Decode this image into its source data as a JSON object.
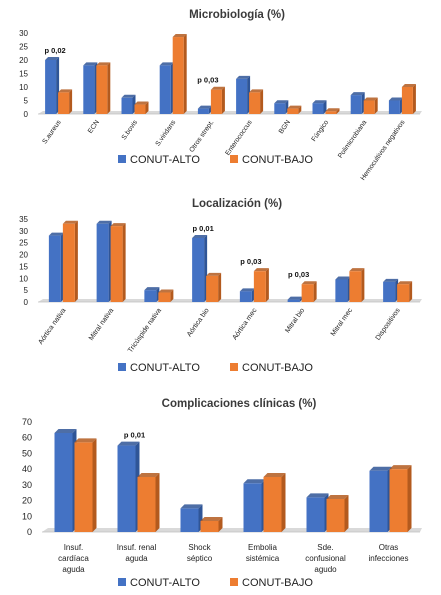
{
  "colors": {
    "alto": "#4472C4",
    "alto_side": "#2F5597",
    "bajo": "#ED7D31",
    "bajo_side": "#B35A1E",
    "floor": "#d9d9d9"
  },
  "chart_data": [
    {
      "type": "bar",
      "title": "Microbiología (%)",
      "ylim": [
        0,
        30
      ],
      "yticks": [
        0,
        5,
        10,
        15,
        20,
        25,
        30
      ],
      "categories": [
        "S.aureus",
        "ECN",
        "S.bovis",
        "S.viridans",
        "Otros strept.",
        "Enterococcus",
        "BGN",
        "Fúngico",
        "Polimicrobiana",
        "Hemocultivos negativos"
      ],
      "series": [
        {
          "name": "CONUT-ALTO",
          "values": [
            20,
            18,
            6,
            18,
            2,
            13,
            4,
            4,
            7,
            5
          ]
        },
        {
          "name": "CONUT-BAJO",
          "values": [
            8,
            18,
            3.5,
            28.5,
            9,
            8,
            2,
            1,
            5,
            10
          ]
        }
      ],
      "annotations": [
        {
          "category": "S.aureus",
          "text": "p 0,02"
        },
        {
          "category": "Otros strept.",
          "text": "p 0,03"
        }
      ],
      "legend": "bottom"
    },
    {
      "type": "bar",
      "title": "Localización (%)",
      "ylim": [
        0,
        35
      ],
      "yticks": [
        0,
        5,
        10,
        15,
        20,
        25,
        30,
        35
      ],
      "categories": [
        "Aórtica nativa",
        "Mitral nativa",
        "Tricúspide nativa",
        "Aórtica bio",
        "Aórtica mec",
        "Mitral bio",
        "Mitral mec",
        "Dispositivos"
      ],
      "series": [
        {
          "name": "CONUT-ALTO",
          "values": [
            28,
            33,
            5,
            27,
            4.5,
            1,
            9.5,
            8.5
          ]
        },
        {
          "name": "CONUT-BAJO",
          "values": [
            33,
            32,
            4,
            11,
            13,
            7.5,
            13,
            7.5
          ]
        }
      ],
      "annotations": [
        {
          "category": "Aórtica bio",
          "text": "p 0,01"
        },
        {
          "category": "Aórtica mec",
          "text": "p 0,03"
        },
        {
          "category": "Mitral bio",
          "text": "p 0,03"
        }
      ],
      "legend": "bottom"
    },
    {
      "type": "bar",
      "title": "Complicaciones clínicas (%)",
      "ylim": [
        0,
        70
      ],
      "yticks": [
        0,
        10,
        20,
        30,
        40,
        50,
        60,
        70
      ],
      "categories": [
        [
          "Insuf.",
          "cardíaca",
          "aguda"
        ],
        [
          "Insuf. renal",
          "aguda"
        ],
        [
          "Shock",
          "séptico"
        ],
        [
          "Embolia",
          "sistémica"
        ],
        [
          "Sde.",
          "confusional",
          "agudo"
        ],
        [
          "Otras",
          "infecciones"
        ]
      ],
      "series": [
        {
          "name": "CONUT-ALTO",
          "values": [
            63,
            55,
            15,
            31,
            22,
            39
          ]
        },
        {
          "name": "CONUT-BAJO",
          "values": [
            57,
            35,
            7,
            35,
            21,
            40
          ]
        }
      ],
      "annotations": [
        {
          "category_index": 1,
          "text": "p 0,01"
        }
      ],
      "legend": "bottom"
    }
  ]
}
